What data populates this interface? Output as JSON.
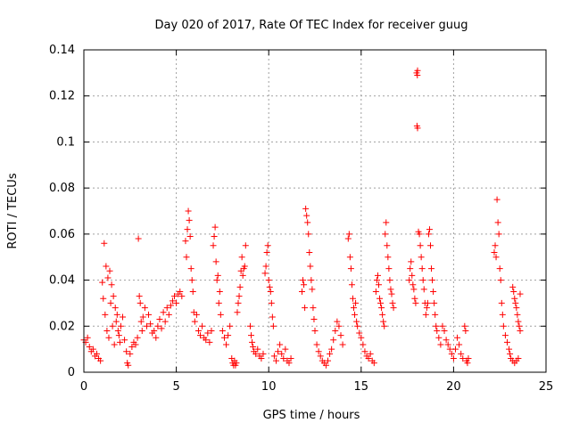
{
  "chart_data": {
    "type": "scatter",
    "title": "Day 020 of 2017, Rate Of TEC Index for receiver guug",
    "xlabel": "GPS time / hours",
    "ylabel": "ROTI / TECUs",
    "xlim": [
      0,
      25
    ],
    "ylim": [
      0,
      0.14
    ],
    "xticks": [
      0,
      5,
      10,
      15,
      20,
      25
    ],
    "yticks": [
      0,
      0.02,
      0.04,
      0.06,
      0.08,
      0.1,
      0.12,
      0.14
    ],
    "xtick_labels": [
      "0",
      "5",
      "10",
      "15",
      "20",
      "25"
    ],
    "ytick_labels": [
      "0",
      "0.02",
      "0.04",
      "0.06",
      "0.08",
      "0.1",
      "0.12",
      "0.14"
    ],
    "grid": true,
    "marker": "+",
    "color": "#ff0000",
    "series": [
      {
        "values": [
          [
            0.0,
            0.014
          ],
          [
            0.1,
            0.013
          ],
          [
            0.2,
            0.015
          ],
          [
            0.3,
            0.011
          ],
          [
            0.4,
            0.009
          ],
          [
            0.5,
            0.01
          ],
          [
            0.6,
            0.007
          ],
          [
            0.7,
            0.008
          ],
          [
            0.8,
            0.006
          ],
          [
            0.9,
            0.005
          ],
          [
            1.0,
            0.039
          ],
          [
            1.05,
            0.032
          ],
          [
            1.1,
            0.056
          ],
          [
            1.15,
            0.025
          ],
          [
            1.2,
            0.046
          ],
          [
            1.25,
            0.018
          ],
          [
            1.3,
            0.041
          ],
          [
            1.35,
            0.015
          ],
          [
            1.4,
            0.044
          ],
          [
            1.45,
            0.03
          ],
          [
            1.5,
            0.038
          ],
          [
            1.55,
            0.02
          ],
          [
            1.6,
            0.033
          ],
          [
            1.65,
            0.012
          ],
          [
            1.7,
            0.028
          ],
          [
            1.75,
            0.022
          ],
          [
            1.8,
            0.025
          ],
          [
            1.85,
            0.018
          ],
          [
            1.9,
            0.016
          ],
          [
            1.95,
            0.013
          ],
          [
            2.0,
            0.02
          ],
          [
            2.1,
            0.024
          ],
          [
            2.2,
            0.014
          ],
          [
            2.3,
            0.009
          ],
          [
            2.35,
            0.004
          ],
          [
            2.4,
            0.003
          ],
          [
            2.5,
            0.008
          ],
          [
            2.6,
            0.011
          ],
          [
            2.7,
            0.013
          ],
          [
            2.8,
            0.012
          ],
          [
            2.9,
            0.015
          ],
          [
            2.95,
            0.058
          ],
          [
            3.0,
            0.033
          ],
          [
            3.05,
            0.03
          ],
          [
            3.1,
            0.022
          ],
          [
            3.15,
            0.018
          ],
          [
            3.2,
            0.024
          ],
          [
            3.3,
            0.028
          ],
          [
            3.4,
            0.02
          ],
          [
            3.5,
            0.025
          ],
          [
            3.6,
            0.021
          ],
          [
            3.7,
            0.017
          ],
          [
            3.8,
            0.018
          ],
          [
            3.9,
            0.015
          ],
          [
            4.0,
            0.02
          ],
          [
            4.1,
            0.023
          ],
          [
            4.2,
            0.019
          ],
          [
            4.3,
            0.026
          ],
          [
            4.4,
            0.022
          ],
          [
            4.5,
            0.028
          ],
          [
            4.6,
            0.025
          ],
          [
            4.7,
            0.029
          ],
          [
            4.8,
            0.031
          ],
          [
            4.9,
            0.033
          ],
          [
            5.0,
            0.03
          ],
          [
            5.1,
            0.034
          ],
          [
            5.2,
            0.035
          ],
          [
            5.3,
            0.033
          ],
          [
            5.5,
            0.057
          ],
          [
            5.55,
            0.05
          ],
          [
            5.6,
            0.062
          ],
          [
            5.65,
            0.07
          ],
          [
            5.7,
            0.066
          ],
          [
            5.75,
            0.059
          ],
          [
            5.8,
            0.045
          ],
          [
            5.85,
            0.04
          ],
          [
            5.9,
            0.035
          ],
          [
            5.95,
            0.026
          ],
          [
            6.0,
            0.022
          ],
          [
            6.1,
            0.025
          ],
          [
            6.2,
            0.018
          ],
          [
            6.3,
            0.016
          ],
          [
            6.4,
            0.02
          ],
          [
            6.5,
            0.015
          ],
          [
            6.6,
            0.014
          ],
          [
            6.7,
            0.017
          ],
          [
            6.8,
            0.013
          ],
          [
            6.9,
            0.018
          ],
          [
            7.0,
            0.055
          ],
          [
            7.05,
            0.059
          ],
          [
            7.1,
            0.063
          ],
          [
            7.15,
            0.048
          ],
          [
            7.2,
            0.04
          ],
          [
            7.25,
            0.042
          ],
          [
            7.3,
            0.03
          ],
          [
            7.35,
            0.035
          ],
          [
            7.4,
            0.025
          ],
          [
            7.5,
            0.018
          ],
          [
            7.6,
            0.015
          ],
          [
            7.7,
            0.012
          ],
          [
            7.8,
            0.016
          ],
          [
            7.9,
            0.02
          ],
          [
            8.0,
            0.006
          ],
          [
            8.05,
            0.004
          ],
          [
            8.1,
            0.003
          ],
          [
            8.15,
            0.005
          ],
          [
            8.2,
            0.003
          ],
          [
            8.25,
            0.004
          ],
          [
            8.3,
            0.026
          ],
          [
            8.35,
            0.03
          ],
          [
            8.4,
            0.033
          ],
          [
            8.45,
            0.037
          ],
          [
            8.5,
            0.044
          ],
          [
            8.55,
            0.05
          ],
          [
            8.6,
            0.042
          ],
          [
            8.65,
            0.045
          ],
          [
            8.7,
            0.046
          ],
          [
            8.75,
            0.055
          ],
          [
            9.0,
            0.02
          ],
          [
            9.05,
            0.016
          ],
          [
            9.1,
            0.013
          ],
          [
            9.15,
            0.011
          ],
          [
            9.2,
            0.009
          ],
          [
            9.3,
            0.008
          ],
          [
            9.4,
            0.01
          ],
          [
            9.5,
            0.007
          ],
          [
            9.6,
            0.006
          ],
          [
            9.7,
            0.008
          ],
          [
            9.8,
            0.043
          ],
          [
            9.85,
            0.046
          ],
          [
            9.9,
            0.052
          ],
          [
            9.95,
            0.055
          ],
          [
            10.0,
            0.04
          ],
          [
            10.05,
            0.037
          ],
          [
            10.1,
            0.035
          ],
          [
            10.15,
            0.03
          ],
          [
            10.2,
            0.024
          ],
          [
            10.25,
            0.02
          ],
          [
            10.3,
            0.007
          ],
          [
            10.4,
            0.005
          ],
          [
            10.5,
            0.009
          ],
          [
            10.6,
            0.012
          ],
          [
            10.7,
            0.008
          ],
          [
            10.8,
            0.006
          ],
          [
            10.9,
            0.01
          ],
          [
            11.0,
            0.005
          ],
          [
            11.1,
            0.004
          ],
          [
            11.2,
            0.006
          ],
          [
            11.8,
            0.035
          ],
          [
            11.85,
            0.04
          ],
          [
            11.9,
            0.038
          ],
          [
            11.95,
            0.028
          ],
          [
            12.0,
            0.071
          ],
          [
            12.05,
            0.068
          ],
          [
            12.1,
            0.065
          ],
          [
            12.15,
            0.06
          ],
          [
            12.2,
            0.052
          ],
          [
            12.25,
            0.046
          ],
          [
            12.3,
            0.04
          ],
          [
            12.35,
            0.036
          ],
          [
            12.4,
            0.028
          ],
          [
            12.45,
            0.023
          ],
          [
            12.5,
            0.018
          ],
          [
            12.6,
            0.012
          ],
          [
            12.7,
            0.009
          ],
          [
            12.8,
            0.007
          ],
          [
            12.9,
            0.005
          ],
          [
            13.0,
            0.004
          ],
          [
            13.1,
            0.003
          ],
          [
            13.2,
            0.005
          ],
          [
            13.3,
            0.008
          ],
          [
            13.4,
            0.01
          ],
          [
            13.5,
            0.014
          ],
          [
            13.6,
            0.018
          ],
          [
            13.7,
            0.022
          ],
          [
            13.8,
            0.02
          ],
          [
            13.9,
            0.016
          ],
          [
            14.0,
            0.012
          ],
          [
            14.3,
            0.058
          ],
          [
            14.35,
            0.06
          ],
          [
            14.4,
            0.05
          ],
          [
            14.45,
            0.045
          ],
          [
            14.5,
            0.038
          ],
          [
            14.55,
            0.032
          ],
          [
            14.6,
            0.028
          ],
          [
            14.65,
            0.025
          ],
          [
            14.7,
            0.03
          ],
          [
            14.75,
            0.022
          ],
          [
            14.8,
            0.02
          ],
          [
            14.9,
            0.017
          ],
          [
            15.0,
            0.015
          ],
          [
            15.1,
            0.012
          ],
          [
            15.2,
            0.009
          ],
          [
            15.3,
            0.007
          ],
          [
            15.4,
            0.006
          ],
          [
            15.5,
            0.008
          ],
          [
            15.6,
            0.005
          ],
          [
            15.7,
            0.004
          ],
          [
            15.8,
            0.035
          ],
          [
            15.85,
            0.04
          ],
          [
            15.9,
            0.042
          ],
          [
            15.95,
            0.038
          ],
          [
            16.0,
            0.032
          ],
          [
            16.05,
            0.03
          ],
          [
            16.1,
            0.028
          ],
          [
            16.15,
            0.025
          ],
          [
            16.2,
            0.022
          ],
          [
            16.25,
            0.02
          ],
          [
            16.3,
            0.06
          ],
          [
            16.35,
            0.065
          ],
          [
            16.4,
            0.055
          ],
          [
            16.45,
            0.05
          ],
          [
            16.5,
            0.045
          ],
          [
            16.55,
            0.04
          ],
          [
            16.6,
            0.036
          ],
          [
            16.65,
            0.034
          ],
          [
            16.7,
            0.03
          ],
          [
            16.75,
            0.028
          ],
          [
            17.6,
            0.04
          ],
          [
            17.65,
            0.045
          ],
          [
            17.7,
            0.048
          ],
          [
            17.75,
            0.042
          ],
          [
            17.8,
            0.038
          ],
          [
            17.85,
            0.036
          ],
          [
            17.9,
            0.032
          ],
          [
            17.95,
            0.03
          ],
          [
            18.0,
            0.13
          ],
          [
            18.05,
            0.131
          ],
          [
            18.02,
            0.107
          ],
          [
            18.05,
            0.106
          ],
          [
            18.04,
            0.129
          ],
          [
            18.1,
            0.061
          ],
          [
            18.15,
            0.06
          ],
          [
            18.2,
            0.055
          ],
          [
            18.25,
            0.05
          ],
          [
            18.3,
            0.045
          ],
          [
            18.35,
            0.04
          ],
          [
            18.4,
            0.036
          ],
          [
            18.45,
            0.03
          ],
          [
            18.5,
            0.025
          ],
          [
            18.55,
            0.028
          ],
          [
            18.6,
            0.03
          ],
          [
            18.65,
            0.06
          ],
          [
            18.7,
            0.062
          ],
          [
            18.75,
            0.055
          ],
          [
            18.8,
            0.045
          ],
          [
            18.85,
            0.04
          ],
          [
            18.9,
            0.035
          ],
          [
            18.95,
            0.03
          ],
          [
            19.0,
            0.025
          ],
          [
            19.05,
            0.02
          ],
          [
            19.1,
            0.018
          ],
          [
            19.2,
            0.015
          ],
          [
            19.3,
            0.012
          ],
          [
            19.4,
            0.02
          ],
          [
            19.5,
            0.018
          ],
          [
            19.6,
            0.014
          ],
          [
            19.7,
            0.012
          ],
          [
            19.8,
            0.01
          ],
          [
            19.9,
            0.008
          ],
          [
            20.0,
            0.006
          ],
          [
            20.1,
            0.01
          ],
          [
            20.2,
            0.015
          ],
          [
            20.3,
            0.012
          ],
          [
            20.4,
            0.008
          ],
          [
            20.5,
            0.006
          ],
          [
            20.6,
            0.02
          ],
          [
            20.65,
            0.018
          ],
          [
            20.7,
            0.005
          ],
          [
            20.75,
            0.004
          ],
          [
            20.8,
            0.006
          ],
          [
            22.2,
            0.052
          ],
          [
            22.25,
            0.055
          ],
          [
            22.3,
            0.05
          ],
          [
            22.35,
            0.075
          ],
          [
            22.4,
            0.065
          ],
          [
            22.45,
            0.06
          ],
          [
            22.5,
            0.045
          ],
          [
            22.55,
            0.04
          ],
          [
            22.6,
            0.03
          ],
          [
            22.65,
            0.025
          ],
          [
            22.7,
            0.02
          ],
          [
            22.8,
            0.016
          ],
          [
            22.9,
            0.013
          ],
          [
            23.0,
            0.01
          ],
          [
            23.05,
            0.008
          ],
          [
            23.1,
            0.006
          ],
          [
            23.2,
            0.005
          ],
          [
            23.3,
            0.004
          ],
          [
            23.4,
            0.005
          ],
          [
            23.5,
            0.006
          ],
          [
            23.2,
            0.037
          ],
          [
            23.25,
            0.035
          ],
          [
            23.3,
            0.032
          ],
          [
            23.35,
            0.03
          ],
          [
            23.4,
            0.028
          ],
          [
            23.45,
            0.025
          ],
          [
            23.5,
            0.022
          ],
          [
            23.55,
            0.02
          ],
          [
            23.6,
            0.018
          ],
          [
            23.6,
            0.034
          ]
        ]
      }
    ]
  }
}
